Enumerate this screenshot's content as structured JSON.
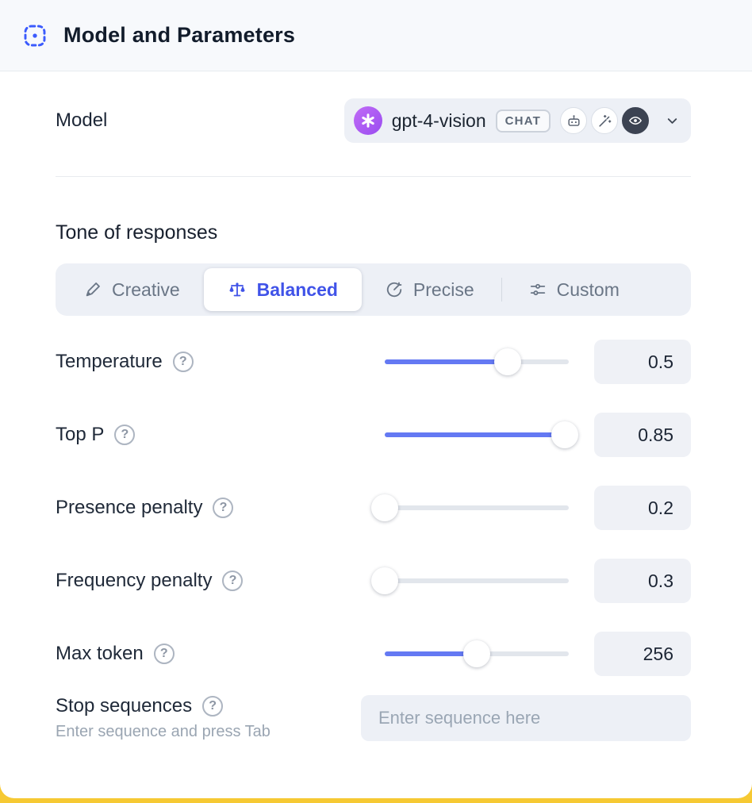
{
  "header": {
    "title": "Model and Parameters"
  },
  "model": {
    "label": "Model",
    "name": "gpt-4-vision",
    "type_badge": "CHAT"
  },
  "tone": {
    "title": "Tone of responses",
    "options": [
      {
        "label": "Creative",
        "icon": "pen-icon",
        "selected": false
      },
      {
        "label": "Balanced",
        "icon": "scale-icon",
        "selected": true
      },
      {
        "label": "Precise",
        "icon": "target-icon",
        "selected": false
      },
      {
        "label": "Custom",
        "icon": "sliders-icon",
        "selected": false
      }
    ]
  },
  "parameters": [
    {
      "label": "Temperature",
      "value": "0.5",
      "percent": 67
    },
    {
      "label": "Top P",
      "value": "0.85",
      "percent": 98
    },
    {
      "label": "Presence penalty",
      "value": "0.2",
      "percent": 0
    },
    {
      "label": "Frequency penalty",
      "value": "0.3",
      "percent": 0
    },
    {
      "label": "Max token",
      "value": "256",
      "percent": 50
    }
  ],
  "stop_sequences": {
    "label": "Stop sequences",
    "hint": "Enter sequence and press Tab",
    "placeholder": "Enter sequence here"
  },
  "icons": {
    "help": "?"
  },
  "colors": {
    "accent": "#4053e8",
    "slider_fill": "#6479f3",
    "header_bg": "#f7f9fc",
    "control_bg": "#edf0f6",
    "backdrop": "#f6c933",
    "openai_badge": "#a855f7"
  }
}
